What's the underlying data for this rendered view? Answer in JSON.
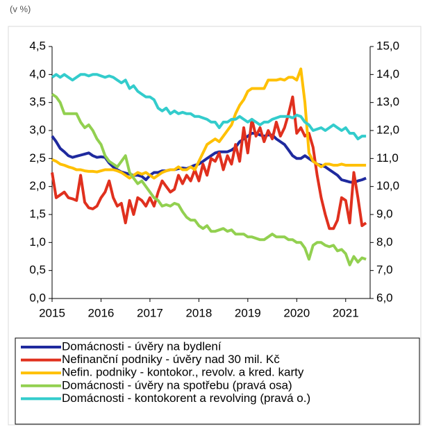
{
  "chart_data": {
    "type": "line",
    "subtitle": "(v %)",
    "categories": [
      "2015",
      null,
      null,
      null,
      null,
      null,
      null,
      null,
      null,
      null,
      null,
      null,
      "2016",
      null,
      null,
      null,
      null,
      null,
      null,
      null,
      null,
      null,
      null,
      null,
      "2017",
      null,
      null,
      null,
      null,
      null,
      null,
      null,
      null,
      null,
      null,
      null,
      "2018",
      null,
      null,
      null,
      null,
      null,
      null,
      null,
      null,
      null,
      null,
      null,
      "2019",
      null,
      null,
      null,
      null,
      null,
      null,
      null,
      null,
      null,
      null,
      null,
      "2020",
      null,
      null,
      null,
      null,
      null,
      null,
      null,
      null,
      null,
      null,
      null,
      "2021",
      null,
      null,
      null,
      null,
      null
    ],
    "ylim": [
      0,
      4.5
    ],
    "yticks": [
      {
        "value": 0,
        "label": "0,0"
      },
      {
        "value": 0.5,
        "label": "0,5"
      },
      {
        "value": 1,
        "label": "1,0"
      },
      {
        "value": 1.5,
        "label": "1,5"
      },
      {
        "value": 2,
        "label": "2,0"
      },
      {
        "value": 2.5,
        "label": "2,5"
      },
      {
        "value": 3,
        "label": "3,0"
      },
      {
        "value": 3.5,
        "label": "3,5"
      },
      {
        "value": 4,
        "label": "4,0"
      },
      {
        "value": 4.5,
        "label": "4,5"
      }
    ],
    "y2lim": [
      6,
      15
    ],
    "y2ticks": [
      {
        "value": 6,
        "label": "6,0"
      },
      {
        "value": 7,
        "label": "7,0"
      },
      {
        "value": 8,
        "label": "8,0"
      },
      {
        "value": 9,
        "label": "9,0"
      },
      {
        "value": 10,
        "label": "10,0"
      },
      {
        "value": 11,
        "label": "11,0"
      },
      {
        "value": 12,
        "label": "12,0"
      },
      {
        "value": 13,
        "label": "13,0"
      },
      {
        "value": 14,
        "label": "14,0"
      },
      {
        "value": 15,
        "label": "15,0"
      }
    ],
    "series": [
      {
        "name": "Domácnosti - úvěry na bydlení",
        "color": "#1f2a9e",
        "values": [
          2.9,
          2.8,
          2.68,
          2.62,
          2.55,
          2.52,
          2.54,
          2.56,
          2.58,
          2.6,
          2.55,
          2.52,
          2.53,
          2.52,
          2.42,
          2.35,
          2.3,
          2.26,
          2.24,
          2.22,
          2.2,
          2.2,
          2.18,
          2.12,
          2.2,
          2.25,
          2.25,
          2.28,
          2.28,
          2.3,
          2.3,
          2.32,
          2.33,
          2.32,
          2.35,
          2.38,
          2.4,
          2.45,
          2.5,
          2.55,
          2.6,
          2.62,
          2.62,
          2.62,
          2.65,
          2.7,
          2.8,
          2.85,
          2.9,
          2.95,
          2.95,
          2.92,
          2.9,
          2.92,
          2.92,
          2.85,
          2.8,
          2.75,
          2.65,
          2.55,
          2.5,
          2.5,
          2.55,
          2.5,
          2.45,
          2.4,
          2.38,
          2.35,
          2.3,
          2.25,
          2.2,
          2.12,
          2.1,
          2.08,
          2.07,
          2.1,
          2.12,
          2.15
        ]
      },
      {
        "name": "Nefinanční podniky - úvěry nad 30 mil. Kč",
        "color": "#e0301e",
        "values": [
          2.25,
          1.8,
          1.85,
          1.9,
          1.8,
          1.78,
          1.75,
          2.2,
          1.72,
          1.62,
          1.6,
          1.65,
          1.8,
          1.9,
          2.1,
          1.8,
          1.65,
          1.7,
          1.35,
          1.75,
          1.5,
          1.8,
          1.75,
          1.65,
          1.8,
          1.65,
          1.9,
          2.1,
          2.0,
          1.9,
          1.95,
          2.2,
          2.05,
          2.2,
          2.1,
          2.3,
          2.1,
          2.4,
          2.2,
          2.5,
          2.45,
          2.6,
          2.3,
          2.55,
          2.4,
          2.75,
          2.45,
          3.05,
          2.6,
          3.2,
          2.9,
          3.05,
          2.8,
          3.0,
          2.85,
          3.15,
          2.9,
          3.05,
          3.3,
          3.6,
          2.95,
          3.05,
          2.9,
          2.95,
          2.7,
          2.2,
          1.8,
          1.5,
          1.25,
          1.25,
          1.4,
          1.8,
          1.75,
          1.35,
          2.25,
          1.8,
          1.3,
          1.35
        ]
      },
      {
        "name": "Nefin. podniky - kontokor., revolv. a kred. karty",
        "color": "#ffc000",
        "values": [
          2.48,
          2.45,
          2.4,
          2.38,
          2.35,
          2.33,
          2.3,
          2.3,
          2.28,
          2.27,
          2.27,
          2.26,
          2.28,
          2.3,
          2.3,
          2.3,
          2.28,
          2.25,
          2.2,
          2.15,
          2.2,
          2.25,
          2.22,
          2.25,
          2.2,
          2.15,
          2.2,
          2.25,
          2.28,
          2.3,
          2.3,
          2.35,
          2.3,
          2.3,
          2.35,
          2.3,
          2.45,
          2.6,
          2.75,
          2.8,
          2.85,
          2.8,
          2.9,
          3.0,
          3.1,
          3.3,
          3.45,
          3.55,
          3.7,
          3.75,
          3.75,
          3.75,
          3.75,
          3.9,
          3.9,
          3.9,
          3.92,
          3.9,
          3.95,
          3.95,
          3.9,
          4.1,
          3.5,
          2.6,
          2.45,
          2.4,
          2.35,
          2.4,
          2.4,
          2.38,
          2.38,
          2.4,
          2.38,
          2.38,
          2.38,
          2.38,
          2.38,
          2.38
        ]
      },
      {
        "name": "Domácnosti - úvěry na spotřebu (pravá osa)",
        "color": "#92d050",
        "axis": "y2",
        "values": [
          13.3,
          13.2,
          13.0,
          12.6,
          12.6,
          12.6,
          12.6,
          12.3,
          12.1,
          12.2,
          12.0,
          11.7,
          11.5,
          11.1,
          10.9,
          10.8,
          10.7,
          10.9,
          11.1,
          10.5,
          10.3,
          10.1,
          10.2,
          10.0,
          9.8,
          9.6,
          9.5,
          9.3,
          9.35,
          9.3,
          9.4,
          9.35,
          9.1,
          8.9,
          8.8,
          8.8,
          8.6,
          8.5,
          8.6,
          8.4,
          8.4,
          8.45,
          8.5,
          8.4,
          8.45,
          8.3,
          8.3,
          8.3,
          8.2,
          8.2,
          8.15,
          8.1,
          8.1,
          8.2,
          8.3,
          8.2,
          8.2,
          8.2,
          8.1,
          8.1,
          8.0,
          8.0,
          7.8,
          7.4,
          7.9,
          8.0,
          8.0,
          7.9,
          7.85,
          7.9,
          7.7,
          7.75,
          7.6,
          7.2,
          7.5,
          7.3,
          7.45,
          7.4
        ]
      },
      {
        "name": "Domácnosti - kontokorent a revolving (pravá o.)",
        "color": "#33cccc",
        "axis": "y2",
        "values": [
          13.9,
          14.0,
          13.9,
          14.0,
          13.9,
          13.8,
          13.9,
          14.0,
          14.0,
          13.95,
          14.0,
          14.0,
          13.95,
          13.9,
          13.95,
          13.9,
          13.8,
          13.7,
          13.8,
          13.5,
          13.6,
          13.4,
          13.3,
          13.2,
          13.2,
          13.1,
          12.8,
          12.7,
          12.8,
          12.6,
          12.7,
          12.6,
          12.65,
          12.6,
          12.6,
          12.5,
          12.5,
          12.45,
          12.4,
          12.3,
          12.3,
          12.1,
          12.3,
          12.3,
          12.4,
          12.4,
          12.5,
          12.4,
          12.3,
          12.4,
          12.3,
          12.2,
          12.3,
          12.3,
          12.4,
          12.45,
          12.5,
          12.5,
          12.5,
          12.45,
          12.55,
          12.5,
          12.3,
          12.2,
          12.0,
          12.05,
          12.1,
          12.0,
          12.1,
          12.2,
          12.1,
          12.0,
          12.1,
          11.9,
          11.9,
          11.7,
          11.8,
          11.8
        ]
      }
    ]
  }
}
